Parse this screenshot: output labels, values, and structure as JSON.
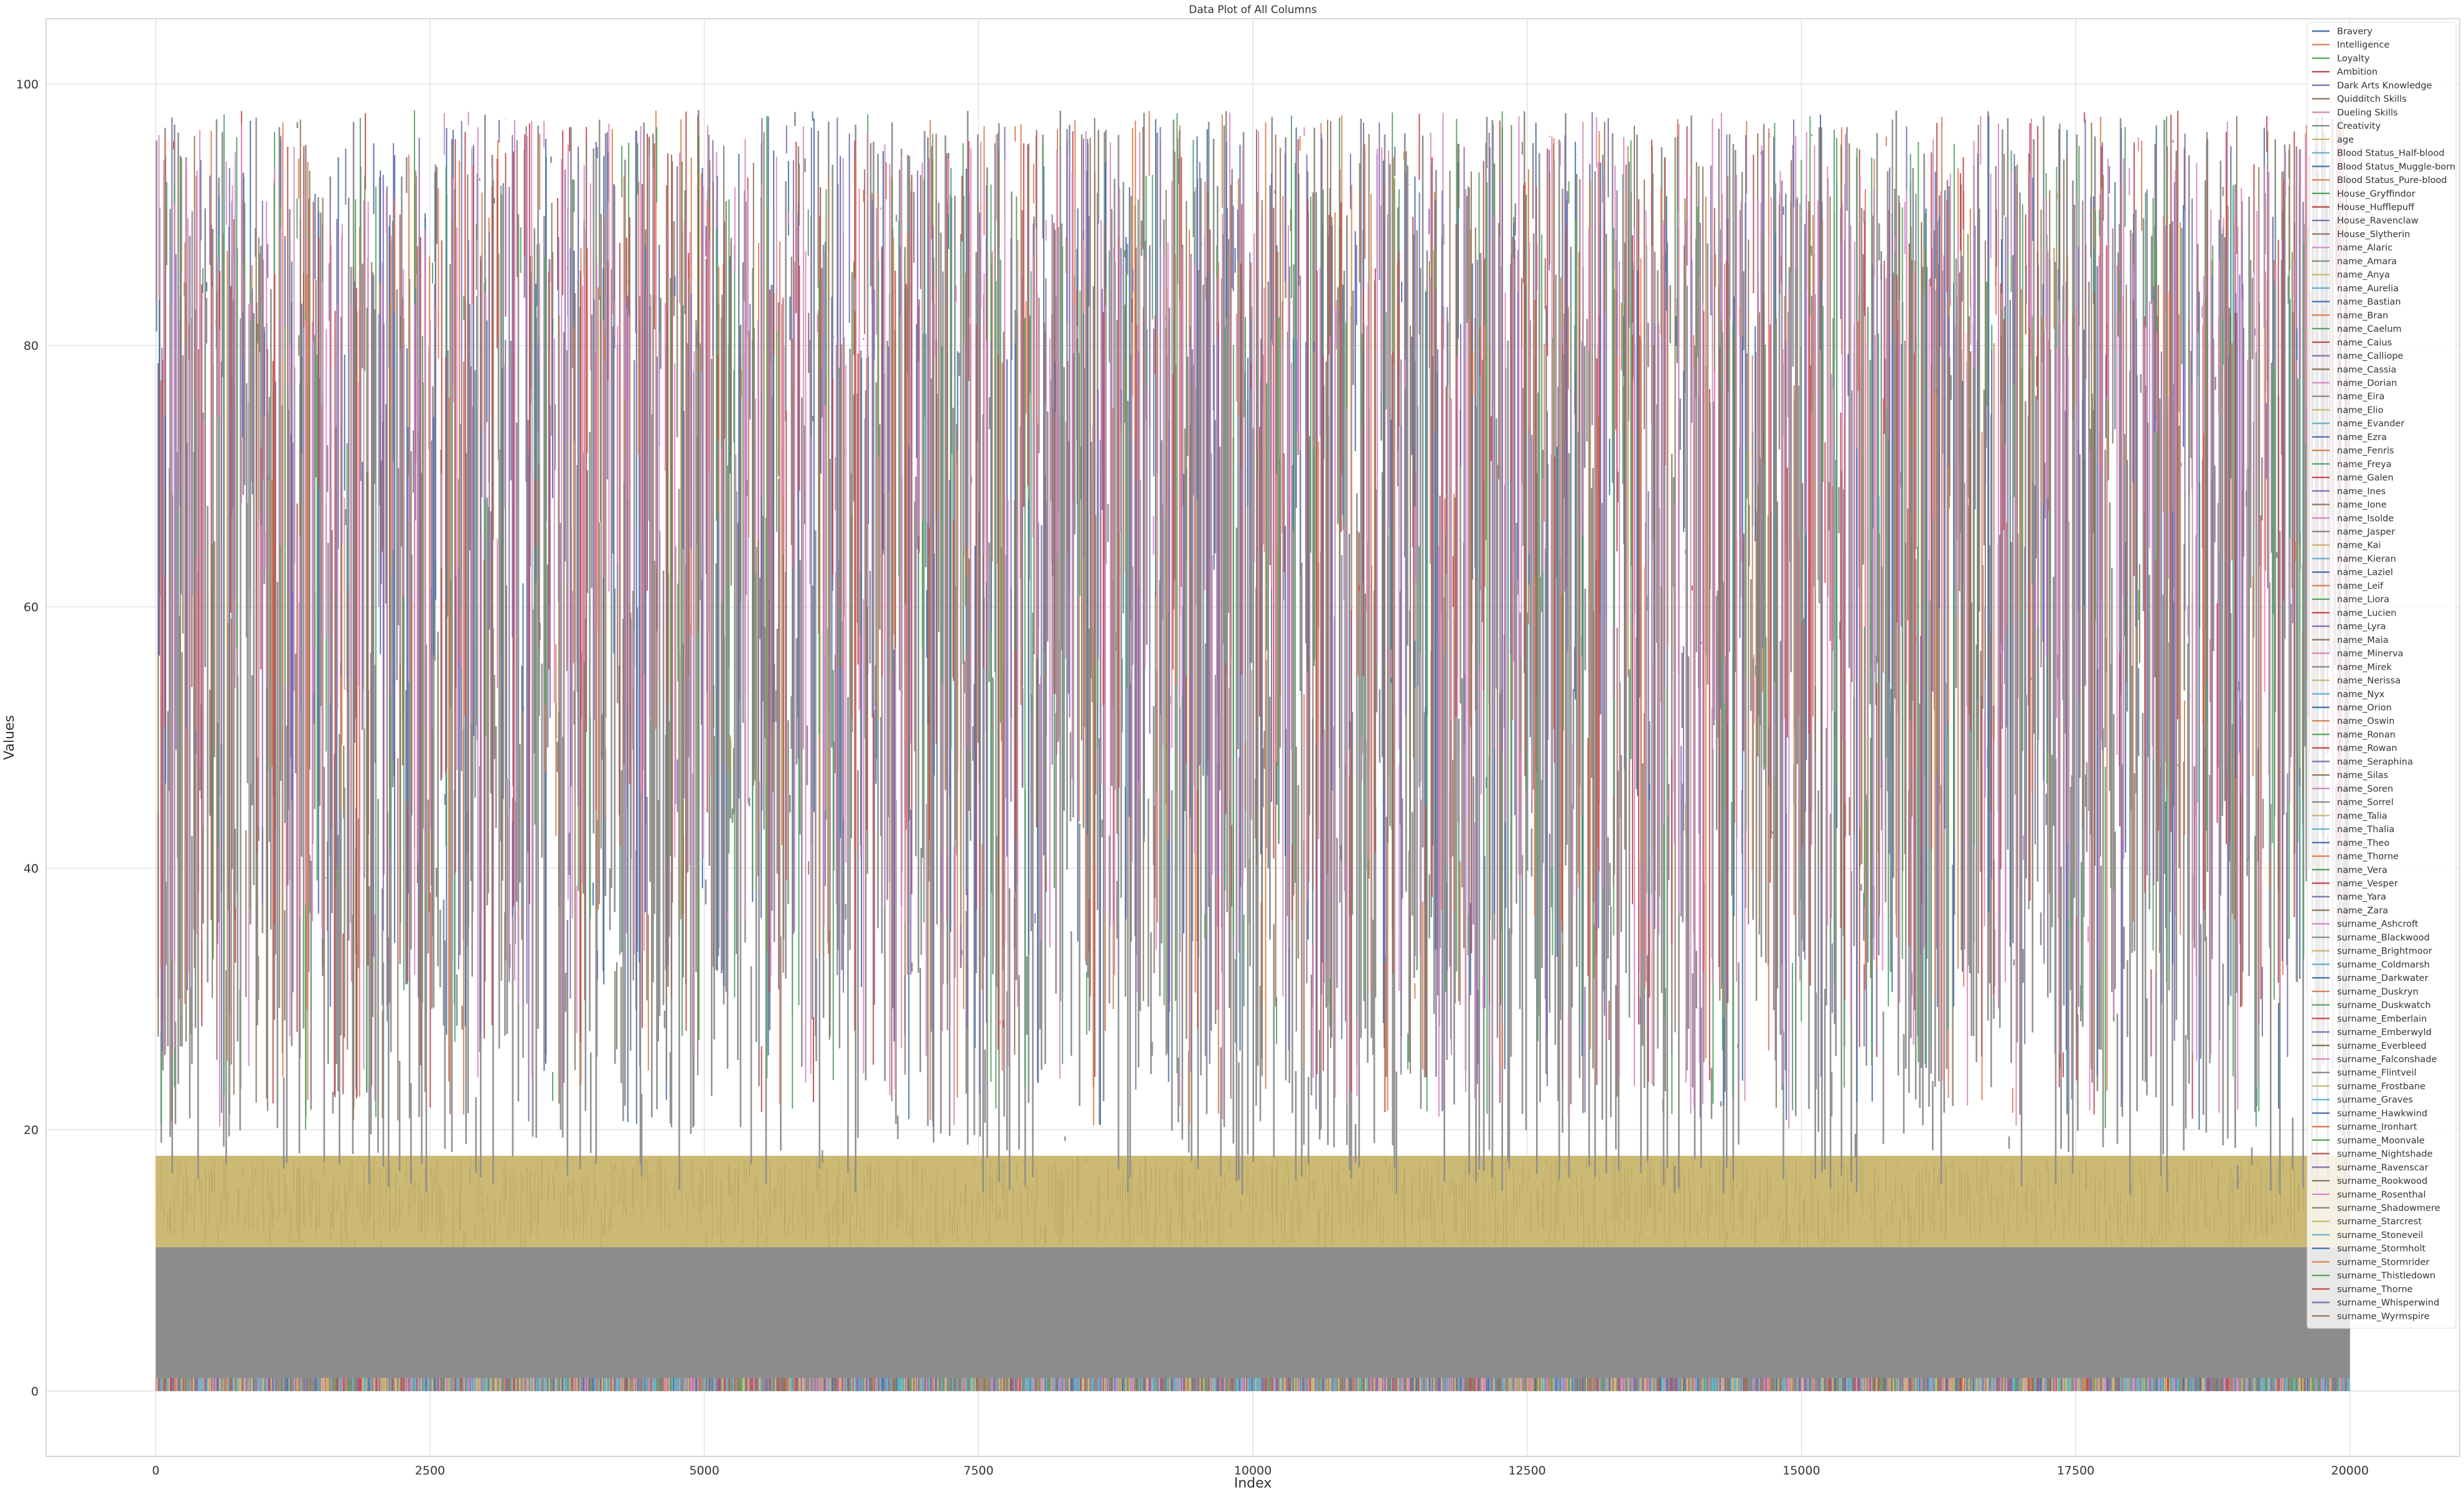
{
  "chart_data": {
    "type": "line",
    "title": "Data Plot of All Columns",
    "xlabel": "Index",
    "ylabel": "Values",
    "xlim": [
      -1000,
      21000
    ],
    "ylim": [
      -5,
      105
    ],
    "x_ticks": [
      0,
      2500,
      5000,
      7500,
      10000,
      12500,
      15000,
      17500,
      20000
    ],
    "y_ticks": [
      0,
      20,
      40,
      60,
      80,
      100
    ],
    "x_tick_labels": [
      "0",
      "2500",
      "5000",
      "7500",
      "10000",
      "12500",
      "15000",
      "17500",
      "20000"
    ],
    "y_tick_labels": [
      "0",
      "20",
      "40",
      "60",
      "80",
      "100"
    ],
    "x_range": [
      0,
      20000
    ],
    "grid": true,
    "legend_position": "top-right",
    "value_bands": [
      {
        "series": "name / surname indicator columns",
        "min": 0,
        "max": 1
      },
      {
        "series": "Blood Status / House indicator columns",
        "min": 0,
        "max": 1
      },
      {
        "series": "age",
        "min": 11,
        "max": 18
      },
      {
        "series": "Bravery",
        "min": 0,
        "max": 100
      },
      {
        "series": "Intelligence",
        "min": 0,
        "max": 100
      },
      {
        "series": "Loyalty",
        "min": 0,
        "max": 100
      },
      {
        "series": "Ambition",
        "min": 0,
        "max": 100
      },
      {
        "series": "Dark Arts Knowledge",
        "min": 0,
        "max": 100
      },
      {
        "series": "Quidditch Skills",
        "min": 0,
        "max": 100
      },
      {
        "series": "Dueling Skills",
        "min": 0,
        "max": 100
      },
      {
        "series": "Creativity",
        "min": 0,
        "max": 100
      }
    ],
    "series": [
      {
        "name": "Bravery",
        "color": "#4c72b0"
      },
      {
        "name": "Intelligence",
        "color": "#dd8452"
      },
      {
        "name": "Loyalty",
        "color": "#55a868"
      },
      {
        "name": "Ambition",
        "color": "#c44e52"
      },
      {
        "name": "Dark Arts Knowledge",
        "color": "#8172b3"
      },
      {
        "name": "Quidditch Skills",
        "color": "#937860"
      },
      {
        "name": "Dueling Skills",
        "color": "#da8bc3"
      },
      {
        "name": "Creativity",
        "color": "#8c8c8c"
      },
      {
        "name": "age",
        "color": "#ccb974"
      },
      {
        "name": "Blood Status_Half-blood",
        "color": "#64b5cd"
      },
      {
        "name": "Blood Status_Muggle-born",
        "color": "#4c72b0"
      },
      {
        "name": "Blood Status_Pure-blood",
        "color": "#dd8452"
      },
      {
        "name": "House_Gryffindor",
        "color": "#55a868"
      },
      {
        "name": "House_Hufflepuff",
        "color": "#c44e52"
      },
      {
        "name": "House_Ravenclaw",
        "color": "#8172b3"
      },
      {
        "name": "House_Slytherin",
        "color": "#937860"
      },
      {
        "name": "name_Alaric",
        "color": "#da8bc3"
      },
      {
        "name": "name_Amara",
        "color": "#8c8c8c"
      },
      {
        "name": "name_Anya",
        "color": "#ccb974"
      },
      {
        "name": "name_Aurelia",
        "color": "#64b5cd"
      },
      {
        "name": "name_Bastian",
        "color": "#4c72b0"
      },
      {
        "name": "name_Bran",
        "color": "#dd8452"
      },
      {
        "name": "name_Caelum",
        "color": "#55a868"
      },
      {
        "name": "name_Caius",
        "color": "#c44e52"
      },
      {
        "name": "name_Calliope",
        "color": "#8172b3"
      },
      {
        "name": "name_Cassia",
        "color": "#937860"
      },
      {
        "name": "name_Dorian",
        "color": "#da8bc3"
      },
      {
        "name": "name_Eira",
        "color": "#8c8c8c"
      },
      {
        "name": "name_Elio",
        "color": "#ccb974"
      },
      {
        "name": "name_Evander",
        "color": "#64b5cd"
      },
      {
        "name": "name_Ezra",
        "color": "#4c72b0"
      },
      {
        "name": "name_Fenris",
        "color": "#dd8452"
      },
      {
        "name": "name_Freya",
        "color": "#55a868"
      },
      {
        "name": "name_Galen",
        "color": "#c44e52"
      },
      {
        "name": "name_Ines",
        "color": "#8172b3"
      },
      {
        "name": "name_Ione",
        "color": "#937860"
      },
      {
        "name": "name_Isolde",
        "color": "#da8bc3"
      },
      {
        "name": "name_Jasper",
        "color": "#8c8c8c"
      },
      {
        "name": "name_Kai",
        "color": "#ccb974"
      },
      {
        "name": "name_Kieran",
        "color": "#64b5cd"
      },
      {
        "name": "name_Laziel",
        "color": "#4c72b0"
      },
      {
        "name": "name_Leif",
        "color": "#dd8452"
      },
      {
        "name": "name_Liora",
        "color": "#55a868"
      },
      {
        "name": "name_Lucien",
        "color": "#c44e52"
      },
      {
        "name": "name_Lyra",
        "color": "#8172b3"
      },
      {
        "name": "name_Maia",
        "color": "#937860"
      },
      {
        "name": "name_Minerva",
        "color": "#da8bc3"
      },
      {
        "name": "name_Mirek",
        "color": "#8c8c8c"
      },
      {
        "name": "name_Nerissa",
        "color": "#ccb974"
      },
      {
        "name": "name_Nyx",
        "color": "#64b5cd"
      },
      {
        "name": "name_Orion",
        "color": "#4c72b0"
      },
      {
        "name": "name_Oswin",
        "color": "#dd8452"
      },
      {
        "name": "name_Ronan",
        "color": "#55a868"
      },
      {
        "name": "name_Rowan",
        "color": "#c44e52"
      },
      {
        "name": "name_Seraphina",
        "color": "#8172b3"
      },
      {
        "name": "name_Silas",
        "color": "#937860"
      },
      {
        "name": "name_Soren",
        "color": "#da8bc3"
      },
      {
        "name": "name_Sorrel",
        "color": "#8c8c8c"
      },
      {
        "name": "name_Talia",
        "color": "#ccb974"
      },
      {
        "name": "name_Thalia",
        "color": "#64b5cd"
      },
      {
        "name": "name_Theo",
        "color": "#4c72b0"
      },
      {
        "name": "name_Thorne",
        "color": "#dd8452"
      },
      {
        "name": "name_Vera",
        "color": "#55a868"
      },
      {
        "name": "name_Vesper",
        "color": "#c44e52"
      },
      {
        "name": "name_Yara",
        "color": "#8172b3"
      },
      {
        "name": "name_Zara",
        "color": "#937860"
      },
      {
        "name": "surname_Ashcroft",
        "color": "#da8bc3"
      },
      {
        "name": "surname_Blackwood",
        "color": "#8c8c8c"
      },
      {
        "name": "surname_Brightmoor",
        "color": "#ccb974"
      },
      {
        "name": "surname_Coldmarsh",
        "color": "#64b5cd"
      },
      {
        "name": "surname_Darkwater",
        "color": "#4c72b0"
      },
      {
        "name": "surname_Duskryn",
        "color": "#dd8452"
      },
      {
        "name": "surname_Duskwatch",
        "color": "#55a868"
      },
      {
        "name": "surname_Emberlain",
        "color": "#c44e52"
      },
      {
        "name": "surname_Emberwyld",
        "color": "#8172b3"
      },
      {
        "name": "surname_Everbleed",
        "color": "#937860"
      },
      {
        "name": "surname_Falconshade",
        "color": "#da8bc3"
      },
      {
        "name": "surname_Flintveil",
        "color": "#8c8c8c"
      },
      {
        "name": "surname_Frostbane",
        "color": "#ccb974"
      },
      {
        "name": "surname_Graves",
        "color": "#64b5cd"
      },
      {
        "name": "surname_Hawkwind",
        "color": "#4c72b0"
      },
      {
        "name": "surname_Ironhart",
        "color": "#dd8452"
      },
      {
        "name": "surname_Moonvale",
        "color": "#55a868"
      },
      {
        "name": "surname_Nightshade",
        "color": "#c44e52"
      },
      {
        "name": "surname_Ravenscar",
        "color": "#8172b3"
      },
      {
        "name": "surname_Rookwood",
        "color": "#937860"
      },
      {
        "name": "surname_Rosenthal",
        "color": "#da8bc3"
      },
      {
        "name": "surname_Shadowmere",
        "color": "#8c8c8c"
      },
      {
        "name": "surname_Starcrest",
        "color": "#ccb974"
      },
      {
        "name": "surname_Stoneveil",
        "color": "#64b5cd"
      },
      {
        "name": "surname_Stormholt",
        "color": "#4c72b0"
      },
      {
        "name": "surname_Stormrider",
        "color": "#dd8452"
      },
      {
        "name": "surname_Thistledown",
        "color": "#55a868"
      },
      {
        "name": "surname_Thorne",
        "color": "#c44e52"
      },
      {
        "name": "surname_Whisperwind",
        "color": "#8172b3"
      },
      {
        "name": "surname_Wyrmspire",
        "color": "#937860"
      }
    ]
  }
}
